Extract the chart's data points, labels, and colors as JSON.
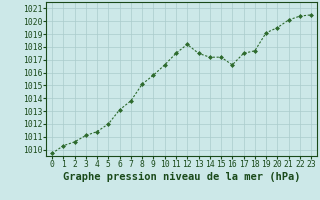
{
  "x": [
    0,
    1,
    2,
    3,
    4,
    5,
    6,
    7,
    8,
    9,
    10,
    11,
    12,
    13,
    14,
    15,
    16,
    17,
    18,
    19,
    20,
    21,
    22,
    23
  ],
  "y": [
    1009.7,
    1010.3,
    1010.6,
    1011.1,
    1011.4,
    1012.0,
    1013.1,
    1013.8,
    1015.1,
    1015.8,
    1016.6,
    1017.5,
    1018.2,
    1017.5,
    1017.2,
    1017.2,
    1016.6,
    1017.5,
    1017.7,
    1019.1,
    1019.5,
    1020.1,
    1020.4,
    1020.5
  ],
  "ylim": [
    1009.5,
    1021.5
  ],
  "yticks": [
    1010,
    1011,
    1012,
    1013,
    1014,
    1015,
    1016,
    1017,
    1018,
    1019,
    1020,
    1021
  ],
  "xticks": [
    0,
    1,
    2,
    3,
    4,
    5,
    6,
    7,
    8,
    9,
    10,
    11,
    12,
    13,
    14,
    15,
    16,
    17,
    18,
    19,
    20,
    21,
    22,
    23
  ],
  "xlabel": "Graphe pression niveau de la mer (hPa)",
  "line_color": "#2d6a2d",
  "marker": "D",
  "marker_size": 2.0,
  "bg_color": "#cce8e8",
  "grid_color": "#aacccc",
  "text_color": "#1a4a1a",
  "xlabel_fontsize": 7.5,
  "tick_fontsize": 5.8,
  "linewidth": 0.8
}
